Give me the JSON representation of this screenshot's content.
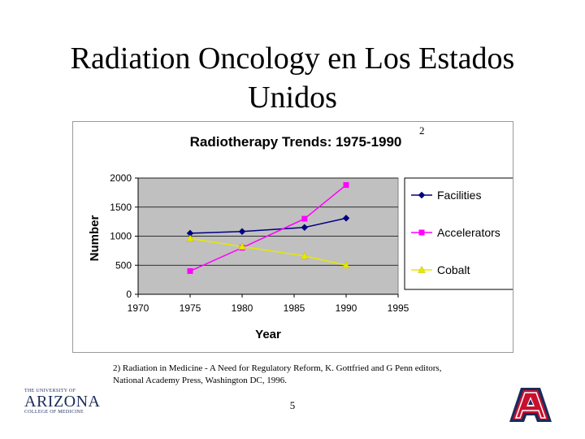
{
  "slide": {
    "title_line1": "Radiation Oncology en Los Estados",
    "title_line2": "Unidos",
    "ref_mark": "2",
    "footnote_line1": "2) Radiation in Medicine - A Need for Regulatory Reform, K. Gottfried and G Penn editors,",
    "footnote_line2": "National Academy Press, Washington DC, 1996.",
    "page_number": "5"
  },
  "logo": {
    "top_text": "The University of",
    "name": "ARIZONA",
    "sub_text": "College of Medicine",
    "brand_red": "#c8102e",
    "brand_navy": "#1a2b5c"
  },
  "chart_data": {
    "type": "line",
    "title": "Radiotherapy Trends: 1975-1990",
    "xlabel": "Year",
    "ylabel": "Number",
    "xlim": [
      1970,
      1995
    ],
    "ylim": [
      0,
      2000
    ],
    "x_ticks": [
      "1970",
      "1975",
      "1980",
      "1985",
      "1990",
      "1995"
    ],
    "y_ticks": [
      "0",
      "500",
      "1000",
      "1500",
      "2000"
    ],
    "plot_background": "#c0c0c0",
    "grid": "horizontal",
    "legend_position": "right",
    "series": [
      {
        "name": "Facilities",
        "color": "#000080",
        "marker": "diamond",
        "points": [
          [
            1975,
            1050
          ],
          [
            1980,
            1080
          ],
          [
            1986,
            1150
          ],
          [
            1990,
            1310
          ]
        ]
      },
      {
        "name": "Accelerators",
        "color": "#ff00ff",
        "marker": "square",
        "points": [
          [
            1975,
            400
          ],
          [
            1980,
            800
          ],
          [
            1986,
            1300
          ],
          [
            1990,
            1880
          ]
        ]
      },
      {
        "name": "Cobalt",
        "color": "#e8e800",
        "marker": "triangle",
        "points": [
          [
            1975,
            960
          ],
          [
            1980,
            820
          ],
          [
            1986,
            660
          ],
          [
            1990,
            500
          ]
        ]
      }
    ]
  }
}
